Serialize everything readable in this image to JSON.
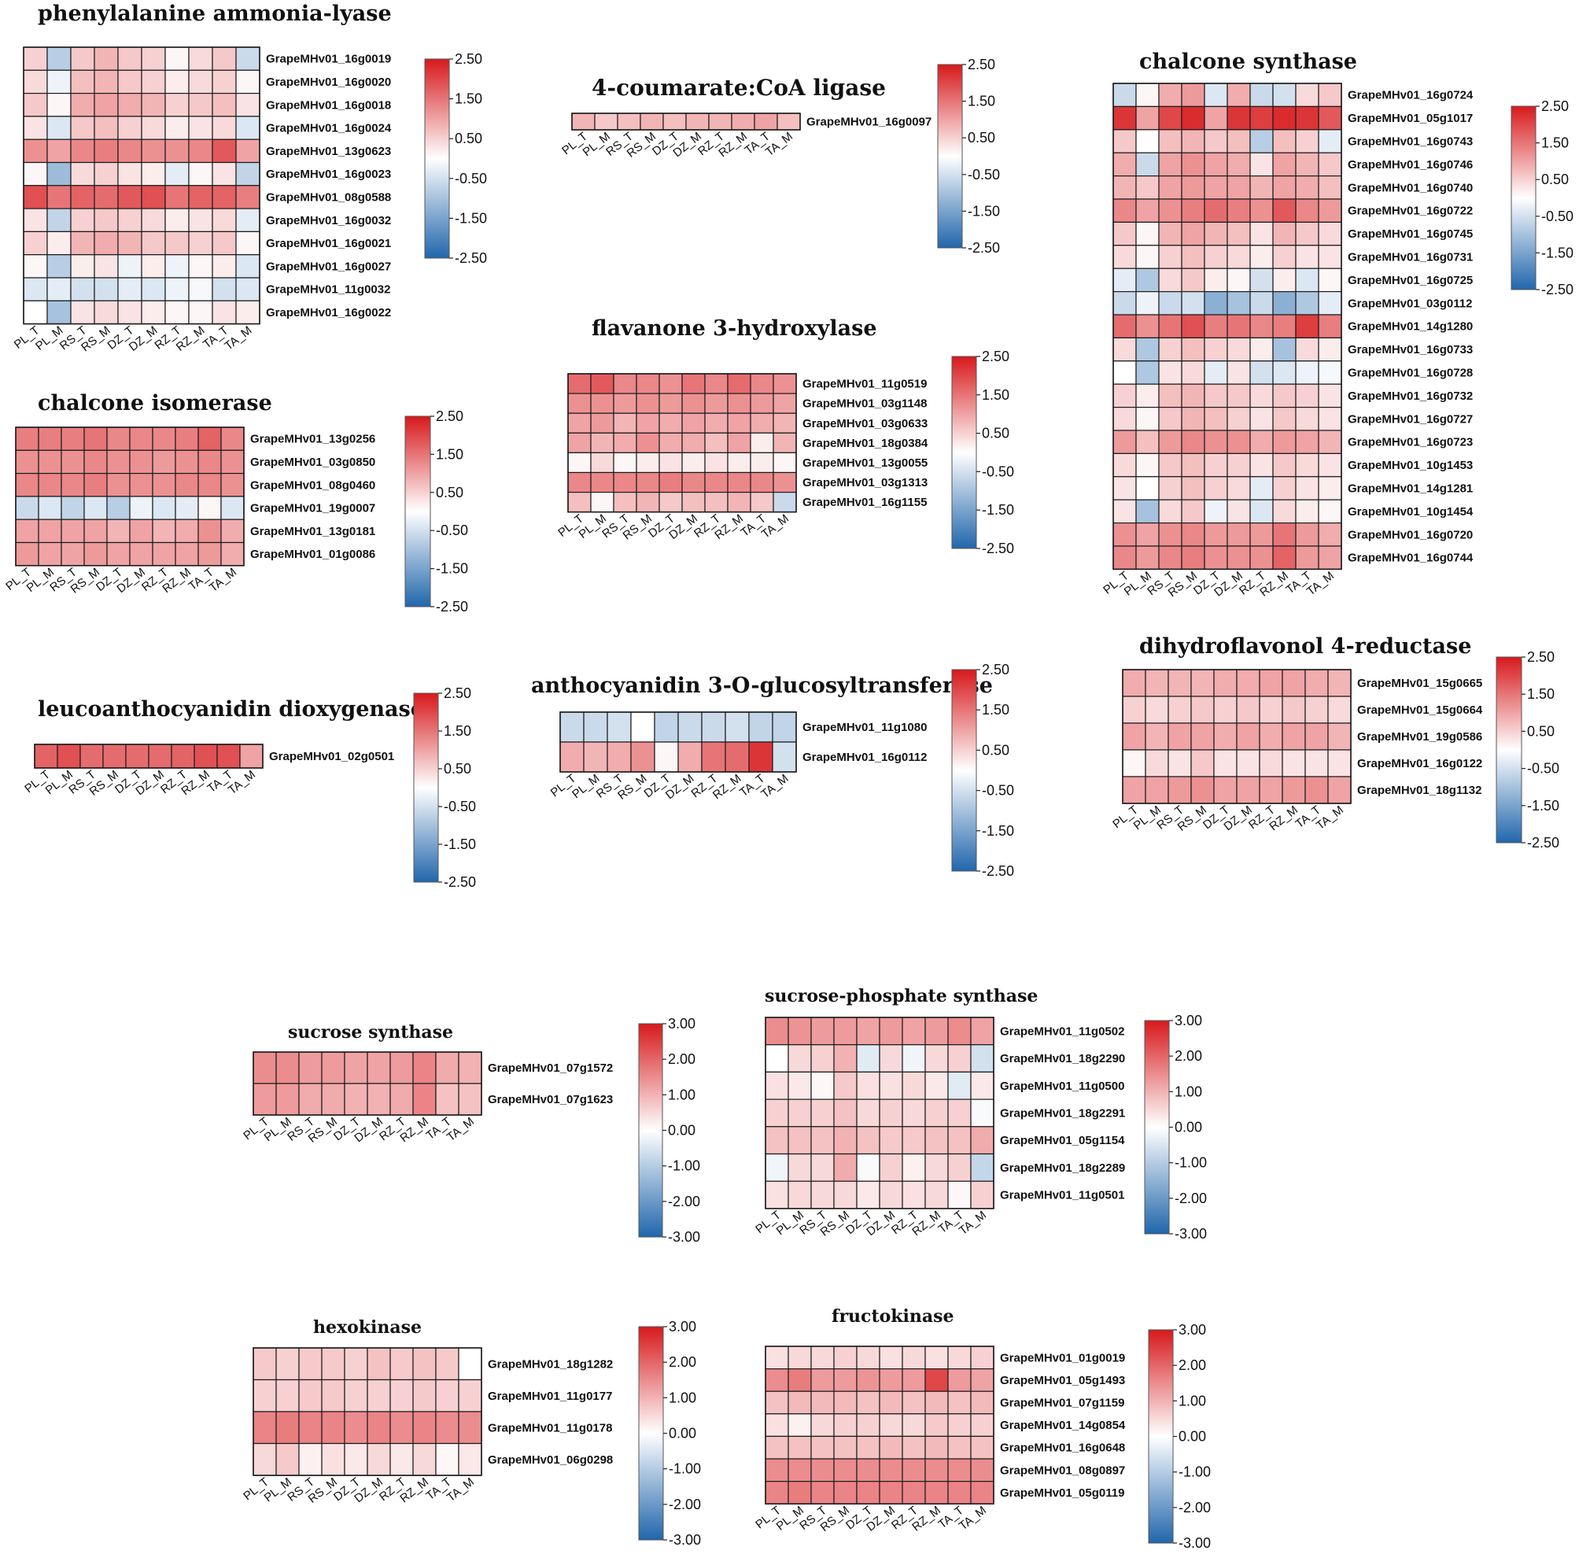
{
  "columns": [
    "PL_T",
    "PL_M",
    "RS_T",
    "RS_M",
    "DZ_T",
    "DZ_M",
    "RZ_T",
    "RZ_M",
    "TA_T",
    "TA_M"
  ],
  "colors": {
    "low": "#2166ac",
    "mid": "#ffffff",
    "high": "#d7191c",
    "grid": "#1a1a1a"
  },
  "chart_data": [
    {
      "type": "heatmap",
      "title": "phenylalanine ammonia-lyase",
      "scale": [
        -2.5,
        2.5
      ],
      "legend_ticks": [
        "2.50",
        "1.50",
        "0.50",
        "-0.50",
        "-1.50",
        "-2.50"
      ],
      "rows": [
        "GrapeMHv01_16g0019",
        "GrapeMHv01_16g0020",
        "GrapeMHv01_16g0018",
        "GrapeMHv01_16g0024",
        "GrapeMHv01_13g0623",
        "GrapeMHv01_16g0023",
        "GrapeMHv01_08g0588",
        "GrapeMHv01_16g0032",
        "GrapeMHv01_16g0021",
        "GrapeMHv01_16g0027",
        "GrapeMHv01_11g0032",
        "GrapeMHv01_16g0022"
      ],
      "values": [
        [
          0.5,
          -0.8,
          0.6,
          0.8,
          0.6,
          0.5,
          0.1,
          0.4,
          0.6,
          -0.6
        ],
        [
          0.4,
          -0.2,
          0.7,
          0.8,
          0.6,
          0.5,
          0.2,
          0.4,
          0.5,
          0.1
        ],
        [
          0.6,
          0.1,
          0.9,
          1.0,
          0.9,
          0.8,
          0.5,
          0.6,
          0.7,
          0.3
        ],
        [
          0.3,
          -0.4,
          0.6,
          0.7,
          0.5,
          0.4,
          0.2,
          0.3,
          0.4,
          -0.4
        ],
        [
          1.2,
          1.0,
          1.3,
          1.4,
          1.3,
          1.2,
          1.2,
          1.3,
          1.8,
          1.0
        ],
        [
          0.1,
          -1.1,
          0.4,
          0.5,
          0.3,
          0.2,
          -0.3,
          0.1,
          0.3,
          -0.7
        ],
        [
          1.9,
          1.5,
          1.7,
          1.6,
          1.8,
          1.9,
          1.5,
          1.7,
          1.7,
          1.4
        ],
        [
          0.3,
          -0.7,
          0.5,
          0.6,
          0.5,
          0.4,
          0.2,
          0.3,
          0.4,
          -0.3
        ],
        [
          0.5,
          0.2,
          0.8,
          0.9,
          0.8,
          0.6,
          0.6,
          0.5,
          0.6,
          0.1
        ],
        [
          0.1,
          -0.8,
          0.2,
          0.3,
          -0.2,
          0.2,
          -0.2,
          0.1,
          0.2,
          -0.4
        ],
        [
          -0.4,
          -0.3,
          -0.5,
          -0.5,
          -0.3,
          -0.4,
          -0.2,
          -0.1,
          -0.5,
          -0.4
        ],
        [
          0.0,
          -1.0,
          0.3,
          0.4,
          0.3,
          0.2,
          0.1,
          0.1,
          0.3,
          0.2
        ]
      ]
    },
    {
      "type": "heatmap",
      "title": "4-coumarate:CoA ligase",
      "scale": [
        -2.5,
        2.5
      ],
      "legend_ticks": [
        "2.50",
        "1.50",
        "0.50",
        "-0.50",
        "-1.50",
        "-2.50"
      ],
      "rows": [
        "GrapeMHv01_16g0097"
      ],
      "values": [
        [
          0.8,
          0.6,
          0.7,
          0.8,
          0.7,
          0.8,
          0.8,
          0.9,
          1.0,
          0.7
        ]
      ]
    },
    {
      "type": "heatmap",
      "title": "chalcone synthase",
      "scale": [
        -2.5,
        2.5
      ],
      "legend_ticks": [
        "2.50",
        "1.50",
        "0.50",
        "-0.50",
        "-1.50",
        "-2.50"
      ],
      "rows": [
        "GrapeMHv01_16g0724",
        "GrapeMHv01_05g1017",
        "GrapeMHv01_16g0743",
        "GrapeMHv01_16g0746",
        "GrapeMHv01_16g0740",
        "GrapeMHv01_16g0722",
        "GrapeMHv01_16g0745",
        "GrapeMHv01_16g0731",
        "GrapeMHv01_16g0725",
        "GrapeMHv01_03g0112",
        "GrapeMHv01_14g1280",
        "GrapeMHv01_16g0733",
        "GrapeMHv01_16g0728",
        "GrapeMHv01_16g0732",
        "GrapeMHv01_16g0727",
        "GrapeMHv01_16g0723",
        "GrapeMHv01_10g1453",
        "GrapeMHv01_14g1281",
        "GrapeMHv01_10g1454",
        "GrapeMHv01_16g0720",
        "GrapeMHv01_16g0744"
      ],
      "values": [
        [
          -0.6,
          0.1,
          0.9,
          1.1,
          -0.4,
          0.9,
          -0.6,
          -0.5,
          0.4,
          0.6
        ],
        [
          2.2,
          1.0,
          2.0,
          2.3,
          1.0,
          2.2,
          2.1,
          2.3,
          2.2,
          1.8
        ],
        [
          0.6,
          0.0,
          0.7,
          0.8,
          0.6,
          0.7,
          -0.8,
          0.7,
          0.5,
          -0.3
        ],
        [
          0.9,
          -0.6,
          1.0,
          1.2,
          1.0,
          0.9,
          0.3,
          1.0,
          0.8,
          0.6
        ],
        [
          0.8,
          0.6,
          1.0,
          1.1,
          1.0,
          1.0,
          0.8,
          1.0,
          0.9,
          0.7
        ],
        [
          1.3,
          1.0,
          1.2,
          1.4,
          1.6,
          1.4,
          1.2,
          1.8,
          1.3,
          1.1
        ],
        [
          0.6,
          0.1,
          0.8,
          1.0,
          0.8,
          0.7,
          0.3,
          0.8,
          0.6,
          0.4
        ],
        [
          0.4,
          0.1,
          0.5,
          0.7,
          0.5,
          0.4,
          0.2,
          0.5,
          0.3,
          0.3
        ],
        [
          -0.3,
          -0.9,
          0.4,
          0.6,
          0.2,
          0.1,
          -0.5,
          0.2,
          -0.4,
          0.1
        ],
        [
          -0.6,
          -0.2,
          -0.6,
          -0.5,
          -1.3,
          -1.0,
          -0.6,
          -1.3,
          -0.9,
          -0.3
        ],
        [
          1.6,
          1.2,
          1.5,
          1.9,
          1.4,
          1.5,
          1.3,
          1.4,
          2.1,
          1.4
        ],
        [
          0.4,
          -0.9,
          0.5,
          0.7,
          0.5,
          0.4,
          0.2,
          -1.0,
          0.4,
          0.2
        ],
        [
          0.0,
          -0.9,
          0.3,
          0.4,
          -0.3,
          0.3,
          -0.5,
          -0.4,
          -0.2,
          -0.1
        ],
        [
          0.5,
          0.2,
          0.7,
          0.8,
          0.6,
          0.6,
          0.4,
          0.6,
          0.5,
          0.3
        ],
        [
          0.4,
          0.1,
          0.6,
          0.8,
          0.7,
          0.5,
          0.3,
          0.6,
          0.4,
          0.3
        ],
        [
          1.1,
          0.7,
          1.1,
          1.3,
          1.2,
          1.2,
          0.9,
          1.1,
          1.0,
          0.8
        ],
        [
          0.4,
          0.1,
          0.6,
          0.7,
          0.5,
          0.5,
          0.3,
          0.6,
          0.4,
          0.3
        ],
        [
          0.3,
          0.0,
          0.5,
          0.7,
          0.5,
          0.4,
          -0.3,
          0.5,
          0.3,
          0.2
        ],
        [
          0.3,
          -1.0,
          0.4,
          0.6,
          -0.2,
          0.3,
          -0.4,
          0.4,
          0.2,
          0.1
        ],
        [
          1.2,
          1.0,
          1.2,
          1.3,
          1.1,
          1.1,
          1.1,
          1.5,
          1.1,
          0.9
        ],
        [
          1.3,
          1.1,
          1.3,
          1.4,
          1.2,
          1.2,
          1.2,
          1.7,
          1.1,
          1.0
        ]
      ]
    },
    {
      "type": "heatmap",
      "title": "flavanone 3-hydroxylase",
      "scale": [
        -2.5,
        2.5
      ],
      "legend_ticks": [
        "2.50",
        "1.50",
        "0.50",
        "-0.50",
        "-1.50",
        "-2.50"
      ],
      "rows": [
        "GrapeMHv01_11g0519",
        "GrapeMHv01_03g1148",
        "GrapeMHv01_03g0633",
        "GrapeMHv01_18g0384",
        "GrapeMHv01_13g0055",
        "GrapeMHv01_03g1313",
        "GrapeMHv01_16g1155"
      ],
      "values": [
        [
          1.6,
          1.8,
          1.3,
          1.3,
          1.2,
          1.5,
          1.3,
          1.6,
          1.3,
          1.2
        ],
        [
          1.2,
          1.2,
          1.1,
          1.2,
          1.1,
          1.2,
          1.1,
          1.2,
          1.1,
          1.0
        ],
        [
          1.0,
          1.1,
          0.8,
          1.0,
          0.9,
          1.0,
          0.9,
          1.0,
          0.9,
          0.8
        ],
        [
          1.0,
          0.8,
          0.9,
          1.2,
          0.9,
          0.9,
          0.7,
          1.0,
          0.2,
          0.8
        ],
        [
          0.1,
          0.4,
          0.1,
          0.2,
          0.3,
          0.2,
          0.3,
          0.2,
          0.2,
          0.1
        ],
        [
          1.3,
          1.3,
          1.3,
          1.3,
          1.4,
          1.3,
          1.3,
          1.3,
          1.3,
          1.2
        ],
        [
          0.7,
          0.1,
          0.7,
          0.8,
          0.6,
          0.7,
          0.7,
          0.8,
          0.6,
          -0.6
        ]
      ]
    },
    {
      "type": "heatmap",
      "title": "chalcone isomerase",
      "scale": [
        -2.5,
        2.5
      ],
      "legend_ticks": [
        "2.50",
        "1.50",
        "0.50",
        "-0.50",
        "-1.50",
        "-2.50"
      ],
      "rows": [
        "GrapeMHv01_13g0256",
        "GrapeMHv01_03g0850",
        "GrapeMHv01_08g0460",
        "GrapeMHv01_19g0007",
        "GrapeMHv01_13g0181",
        "GrapeMHv01_01g0086"
      ],
      "values": [
        [
          1.4,
          1.4,
          1.4,
          1.5,
          1.3,
          1.3,
          1.3,
          1.4,
          1.7,
          1.3
        ],
        [
          1.2,
          1.2,
          1.2,
          1.3,
          1.2,
          1.2,
          1.1,
          1.2,
          1.3,
          1.2
        ],
        [
          1.3,
          1.3,
          1.3,
          1.4,
          1.2,
          1.2,
          1.2,
          1.3,
          1.3,
          1.2
        ],
        [
          -0.6,
          -0.4,
          -0.7,
          -0.4,
          -0.8,
          -0.2,
          -0.4,
          -0.3,
          0.1,
          -0.4
        ],
        [
          1.0,
          1.0,
          1.0,
          1.0,
          0.8,
          1.0,
          0.8,
          0.9,
          1.2,
          0.9
        ],
        [
          1.1,
          1.0,
          1.0,
          1.1,
          1.0,
          1.0,
          1.0,
          1.0,
          1.1,
          0.9
        ]
      ]
    },
    {
      "type": "heatmap",
      "title": "leucoanthocyanidin dioxygenase",
      "scale": [
        -2.5,
        2.5
      ],
      "legend_ticks": [
        "2.50",
        "1.50",
        "0.50",
        "-0.50",
        "-1.50",
        "-2.50"
      ],
      "rows": [
        "GrapeMHv01_02g0501"
      ],
      "values": [
        [
          1.7,
          1.9,
          1.6,
          1.6,
          1.6,
          1.6,
          1.7,
          1.9,
          1.9,
          1.0
        ]
      ]
    },
    {
      "type": "heatmap",
      "title": "anthocyanidin 3-O-glucosyltransferase",
      "scale": [
        -2.5,
        2.5
      ],
      "legend_ticks": [
        "2.50",
        "1.50",
        "0.50",
        "-0.50",
        "-1.50",
        "-2.50"
      ],
      "rows": [
        "GrapeMHv01_11g1080",
        "GrapeMHv01_16g0112"
      ],
      "values": [
        [
          -0.6,
          -0.6,
          -0.5,
          0.0,
          -0.7,
          -0.6,
          -0.6,
          -0.5,
          -0.7,
          -0.7
        ],
        [
          0.9,
          0.8,
          0.9,
          1.2,
          0.1,
          0.9,
          1.5,
          1.6,
          2.2,
          -0.5
        ]
      ]
    },
    {
      "type": "heatmap",
      "title": "dihydroflavonol 4-reductase",
      "scale": [
        -2.5,
        2.5
      ],
      "legend_ticks": [
        "2.50",
        "1.50",
        "0.50",
        "-0.50",
        "-1.50",
        "-2.50"
      ],
      "rows": [
        "GrapeMHv01_15g0665",
        "GrapeMHv01_15g0664",
        "GrapeMHv01_19g0586",
        "GrapeMHv01_16g0122",
        "GrapeMHv01_18g1132"
      ],
      "values": [
        [
          0.9,
          0.8,
          0.8,
          0.8,
          0.9,
          0.9,
          1.0,
          1.0,
          0.9,
          0.8
        ],
        [
          0.5,
          0.4,
          0.5,
          0.6,
          0.5,
          0.6,
          0.5,
          0.6,
          0.5,
          0.4
        ],
        [
          1.0,
          0.8,
          1.0,
          1.0,
          0.9,
          1.0,
          0.9,
          1.0,
          1.0,
          0.8
        ],
        [
          0.1,
          0.4,
          0.3,
          0.6,
          0.3,
          0.3,
          0.4,
          0.3,
          0.3,
          0.3
        ],
        [
          1.0,
          1.0,
          1.1,
          1.2,
          1.0,
          1.0,
          1.0,
          1.1,
          1.2,
          1.0
        ]
      ]
    },
    {
      "type": "heatmap",
      "title": "sucrose synthase",
      "scale": [
        -3.0,
        3.0
      ],
      "legend_ticks": [
        "3.00",
        "2.00",
        "1.00",
        "0.00",
        "-1.00",
        "-2.00",
        "-3.00"
      ],
      "rows": [
        "GrapeMHv01_07g1572",
        "GrapeMHv01_07g1623"
      ],
      "values": [
        [
          1.5,
          1.5,
          1.3,
          1.3,
          1.2,
          1.2,
          1.3,
          1.6,
          1.1,
          1.0
        ],
        [
          1.3,
          1.3,
          1.1,
          1.1,
          1.0,
          1.0,
          1.1,
          1.6,
          0.8,
          0.8
        ]
      ]
    },
    {
      "type": "heatmap",
      "title": "sucrose-phosphate synthase",
      "scale": [
        -3.0,
        3.0
      ],
      "legend_ticks": [
        "3.00",
        "2.00",
        "1.00",
        "0.00",
        "-1.00",
        "-2.00",
        "-3.00"
      ],
      "rows": [
        "GrapeMHv01_11g0502",
        "GrapeMHv01_18g2290",
        "GrapeMHv01_11g0500",
        "GrapeMHv01_18g2291",
        "GrapeMHv01_05g1154",
        "GrapeMHv01_18g2289",
        "GrapeMHv01_11g0501"
      ],
      "values": [
        [
          1.5,
          1.4,
          1.3,
          1.3,
          1.2,
          1.3,
          1.2,
          1.3,
          1.5,
          1.2
        ],
        [
          0.0,
          0.5,
          0.6,
          1.0,
          -0.4,
          0.5,
          -0.2,
          0.5,
          0.6,
          -0.6
        ],
        [
          0.4,
          0.3,
          0.1,
          0.7,
          0.4,
          0.4,
          0.5,
          0.3,
          -0.4,
          0.3
        ],
        [
          0.6,
          0.6,
          0.6,
          0.8,
          0.5,
          0.6,
          0.5,
          0.6,
          0.6,
          -0.1
        ],
        [
          0.8,
          0.8,
          0.8,
          1.0,
          0.8,
          0.7,
          0.7,
          0.8,
          0.8,
          1.1
        ],
        [
          -0.2,
          0.5,
          0.5,
          1.1,
          -0.1,
          0.6,
          0.2,
          0.5,
          0.6,
          -0.8
        ],
        [
          0.4,
          0.5,
          0.5,
          0.5,
          0.3,
          0.5,
          0.4,
          0.5,
          0.1,
          0.6
        ]
      ]
    },
    {
      "type": "heatmap",
      "title": "hexokinase",
      "scale": [
        -3.0,
        3.0
      ],
      "legend_ticks": [
        "3.00",
        "2.00",
        "1.00",
        "0.00",
        "-1.00",
        "-2.00",
        "-3.00"
      ],
      "rows": [
        "GrapeMHv01_18g1282",
        "GrapeMHv01_11g0177",
        "GrapeMHv01_11g0178",
        "GrapeMHv01_06g0298"
      ],
      "values": [
        [
          0.7,
          0.6,
          0.7,
          0.7,
          0.6,
          0.8,
          0.7,
          0.8,
          0.7,
          0.0
        ],
        [
          0.6,
          0.6,
          0.7,
          0.7,
          0.6,
          0.6,
          0.6,
          0.7,
          0.6,
          0.6
        ],
        [
          1.6,
          1.7,
          1.6,
          1.6,
          1.5,
          1.6,
          1.5,
          1.6,
          1.5,
          1.5
        ],
        [
          0.5,
          0.7,
          0.2,
          0.4,
          0.3,
          0.5,
          0.3,
          0.5,
          0.1,
          0.3
        ]
      ]
    },
    {
      "type": "heatmap",
      "title": "fructokinase",
      "scale": [
        -3.0,
        3.0
      ],
      "legend_ticks": [
        "3.00",
        "2.00",
        "1.00",
        "0.00",
        "-1.00",
        "-2.00",
        "-3.00"
      ],
      "rows": [
        "GrapeMHv01_01g0019",
        "GrapeMHv01_05g1493",
        "GrapeMHv01_07g1159",
        "GrapeMHv01_14g0854",
        "GrapeMHv01_16g0648",
        "GrapeMHv01_08g0897",
        "GrapeMHv01_05g0119"
      ],
      "values": [
        [
          0.4,
          0.5,
          0.5,
          0.6,
          0.5,
          0.4,
          0.5,
          0.4,
          0.5,
          0.6
        ],
        [
          1.5,
          1.7,
          1.3,
          1.3,
          1.4,
          1.3,
          1.3,
          2.4,
          1.3,
          1.2
        ],
        [
          0.8,
          0.9,
          0.9,
          0.9,
          0.8,
          0.9,
          0.8,
          0.9,
          0.8,
          0.9
        ],
        [
          0.4,
          0.2,
          0.5,
          0.6,
          0.6,
          0.5,
          0.5,
          0.7,
          0.6,
          0.6
        ],
        [
          0.8,
          0.8,
          0.8,
          0.8,
          0.8,
          0.9,
          0.8,
          0.9,
          0.8,
          0.8
        ],
        [
          1.5,
          1.5,
          1.5,
          1.5,
          1.5,
          1.5,
          1.5,
          1.5,
          1.5,
          1.5
        ],
        [
          1.6,
          1.7,
          1.6,
          1.6,
          1.6,
          1.6,
          1.6,
          1.6,
          1.6,
          1.6
        ]
      ]
    }
  ]
}
